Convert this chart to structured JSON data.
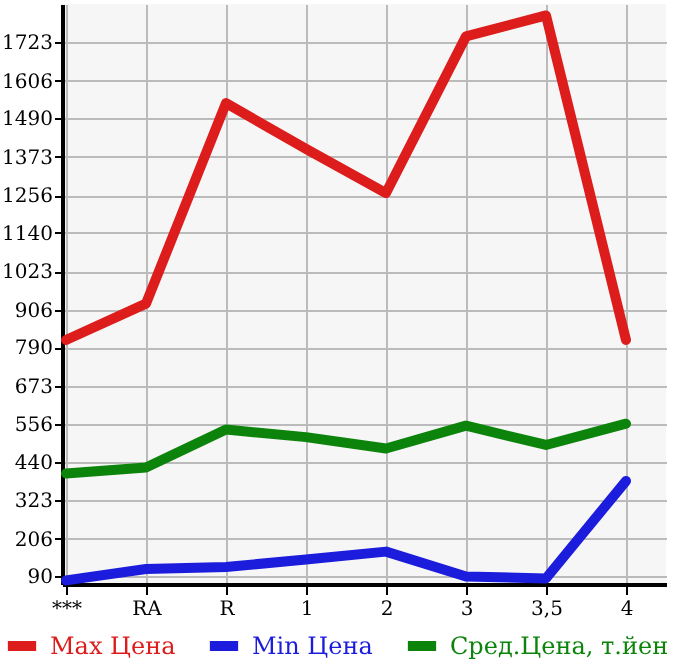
{
  "chart_data": {
    "type": "line",
    "categories": [
      "***",
      "RA",
      "R",
      "1",
      "2",
      "3",
      "3,5",
      "4"
    ],
    "series": [
      {
        "name": "Max Цена",
        "color": "#dd1c1c",
        "values": [
          813,
          924,
          1537,
          1397,
          1262,
          1741,
          1805,
          813
        ]
      },
      {
        "name": "Min Цена",
        "color": "#1c1cdd",
        "values": [
          78,
          113,
          119,
          142,
          166,
          90,
          84,
          382
        ]
      },
      {
        "name": "Сред.Цена, т.йен",
        "color": "#0c840c",
        "values": [
          405,
          423,
          539,
          516,
          481,
          551,
          492,
          557
        ]
      }
    ],
    "ylim": [
      67,
      1840
    ],
    "yticks": [
      90,
      206,
      323,
      440,
      556,
      673,
      790,
      906,
      1023,
      1140,
      1256,
      1373,
      1490,
      1606,
      1723
    ],
    "grid": true,
    "legend": "bottom",
    "marker": "none",
    "line_style": "solid"
  }
}
